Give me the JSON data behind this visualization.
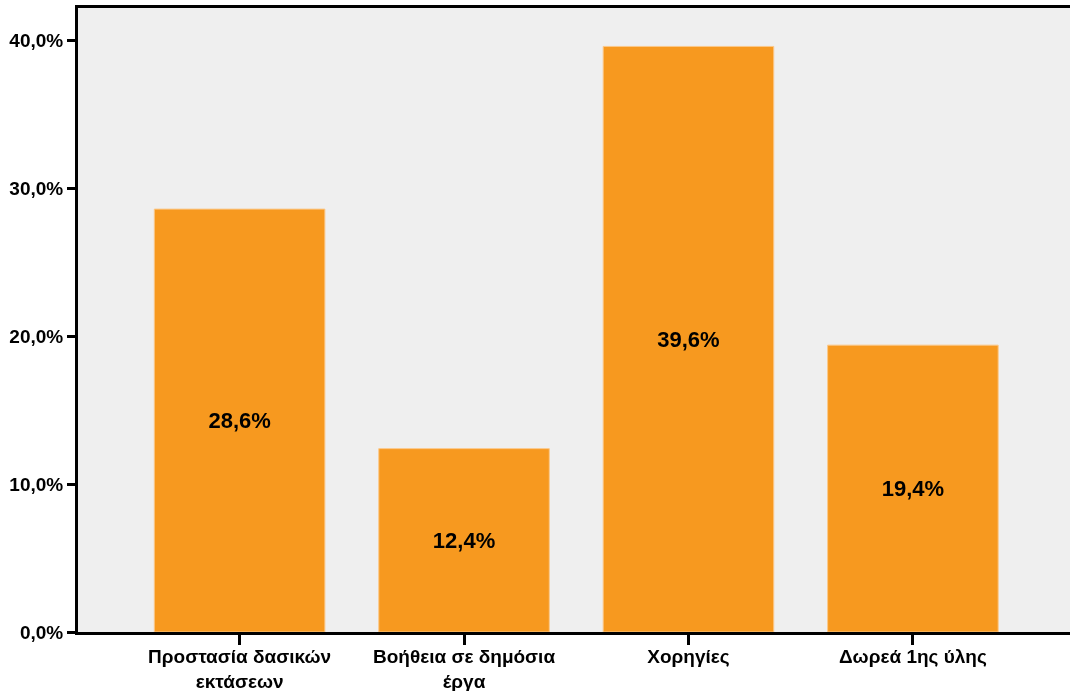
{
  "chart_data": {
    "type": "bar",
    "categories": [
      "Προστασία δασικών εκτάσεων",
      "Βοήθεια σε δημόσια έργα",
      "Χορηγίες",
      "Δωρεά 1ης ύλης"
    ],
    "values": [
      28.6,
      12.4,
      39.6,
      19.4
    ],
    "color": "#f7991f",
    "value_labels": [
      "28,6%",
      "12,4%",
      "39,6%",
      "19,4%"
    ],
    "ylim": [
      0,
      42.2
    ],
    "yticks": [
      {
        "value": 0,
        "label": "0,0%"
      },
      {
        "value": 10,
        "label": "10,0%"
      },
      {
        "value": 20,
        "label": "20,0%"
      },
      {
        "value": 30,
        "label": "30,0%"
      },
      {
        "value": 40,
        "label": "40,0%"
      }
    ]
  }
}
